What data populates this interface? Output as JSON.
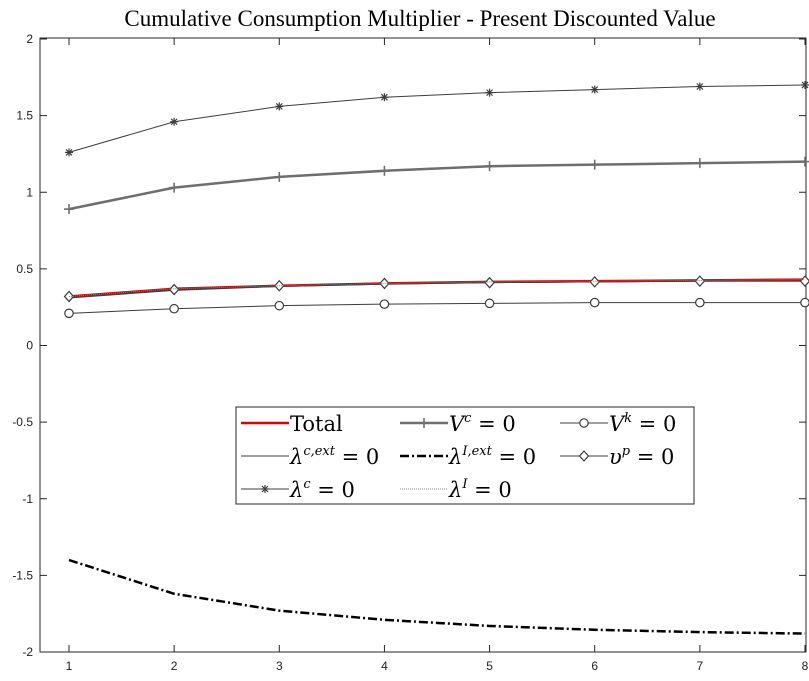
{
  "chart_data": {
    "type": "line",
    "title": "Cumulative Consumption Multiplier - Present Discounted Value",
    "xlabel": "",
    "ylabel": "",
    "x": [
      1,
      2,
      3,
      4,
      5,
      6,
      7,
      8
    ],
    "xlim": [
      1,
      8
    ],
    "ylim": [
      -2,
      2
    ],
    "xticks": [
      "1",
      "2",
      "3",
      "4",
      "5",
      "6",
      "7",
      "8"
    ],
    "yticks": [
      "-2",
      "-1.5",
      "-1",
      "-0.5",
      "0",
      "0.5",
      "1",
      "1.5",
      "2"
    ],
    "grid": false,
    "legend_position": "center",
    "series": [
      {
        "name": "Total",
        "values": [
          0.32,
          0.37,
          0.39,
          0.405,
          0.415,
          0.42,
          0.425,
          0.43
        ],
        "color": "#e00000",
        "width": 2.5,
        "dash": "",
        "marker": "none"
      },
      {
        "name": "V^c = 0",
        "values": [
          0.89,
          1.03,
          1.1,
          1.14,
          1.17,
          1.18,
          1.19,
          1.2
        ],
        "color": "#6e6e6e",
        "width": 2.5,
        "dash": "",
        "marker": "plus"
      },
      {
        "name": "V^k = 0",
        "values": [
          0.21,
          0.24,
          0.26,
          0.27,
          0.275,
          0.28,
          0.28,
          0.28
        ],
        "color": "#3c3c3c",
        "width": 1,
        "dash": "",
        "marker": "circle"
      },
      {
        "name": "λ^{c,ext} = 0",
        "values": [
          0.31,
          0.36,
          0.385,
          0.4,
          0.41,
          0.415,
          0.42,
          0.42
        ],
        "color": "#3c3c3c",
        "width": 1,
        "dash": "",
        "marker": "none"
      },
      {
        "name": "λ^{I,ext} = 0",
        "values": [
          -1.4,
          -1.62,
          -1.73,
          -1.79,
          -1.83,
          -1.855,
          -1.87,
          -1.88
        ],
        "color": "#000000",
        "width": 2.5,
        "dash": "9,3,2,3",
        "marker": "none"
      },
      {
        "name": "υ^p = 0",
        "values": [
          0.32,
          0.365,
          0.39,
          0.405,
          0.41,
          0.415,
          0.42,
          0.42
        ],
        "color": "#3c3c3c",
        "width": 1,
        "dash": "",
        "marker": "diamond"
      },
      {
        "name": "λ^c = 0",
        "values": [
          1.26,
          1.46,
          1.56,
          1.62,
          1.65,
          1.67,
          1.69,
          1.7
        ],
        "color": "#3c3c3c",
        "width": 1,
        "dash": "",
        "marker": "star"
      },
      {
        "name": "λ^I = 0",
        "values": [
          0.32,
          0.37,
          0.39,
          0.405,
          0.415,
          0.42,
          0.425,
          0.43
        ],
        "color": "#808080",
        "width": 1,
        "dash": "1,1",
        "marker": "none"
      }
    ]
  },
  "legend": {
    "rows": [
      [
        {
          "base": "Total",
          "sup": "",
          "rest": ""
        },
        {
          "base": "V",
          "sup": "c",
          "rest": " = 0"
        },
        {
          "base": "V",
          "sup": "k",
          "rest": " = 0"
        }
      ],
      [
        {
          "base": "λ",
          "sup": "c,ext",
          "rest": " = 0"
        },
        {
          "base": "λ",
          "sup": "I,ext",
          "rest": " = 0"
        },
        {
          "base": "υ",
          "sup": "p",
          "rest": " = 0"
        }
      ],
      [
        {
          "base": "λ",
          "sup": "c",
          "rest": " = 0"
        },
        {
          "base": "λ",
          "sup": "I",
          "rest": " = 0"
        }
      ]
    ]
  }
}
